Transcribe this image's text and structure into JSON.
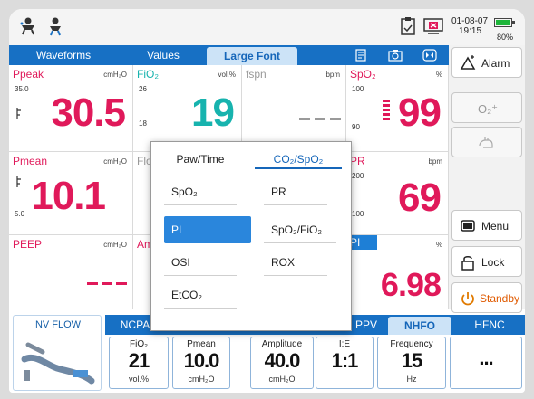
{
  "status": {
    "date": "01-08-07",
    "time": "19:15",
    "battery": "80%"
  },
  "tabs": [
    {
      "label": "Waveforms"
    },
    {
      "label": "Values"
    },
    {
      "label": "Large Font"
    }
  ],
  "params": {
    "ppeak": {
      "name": "Ppeak",
      "unit": "cmH₂O",
      "hi": "35.0",
      "value": "30.5"
    },
    "fio2": {
      "name": "FiO₂",
      "unit": "vol.%",
      "hi": "26",
      "lo": "18",
      "value": "19"
    },
    "fspn": {
      "name": "fspn",
      "unit": "bpm"
    },
    "spo2": {
      "name": "SpO₂",
      "unit": "%",
      "hi": "100",
      "lo": "90",
      "value": "99"
    },
    "pmean": {
      "name": "Pmean",
      "unit": "cmH₂O",
      "lo": "5.0",
      "value": "10.1"
    },
    "flow": {
      "name": "Flov"
    },
    "pr": {
      "name": "PR",
      "unit": "bpm",
      "hi": "200",
      "lo": "100",
      "value": "69"
    },
    "peep": {
      "name": "PEEP",
      "unit": "cmH₂O"
    },
    "amp": {
      "name": "Amp"
    },
    "pi": {
      "name": "PI",
      "unit": "%",
      "value": "6.98"
    }
  },
  "right_buttons": {
    "alarm": "Alarm",
    "o2": "O₂⁺",
    "menu": "Menu",
    "lock": "Lock",
    "standby": "Standby"
  },
  "popup": {
    "tabs": [
      "Paw/Time",
      "CO₂/SpO₂"
    ],
    "items": [
      "SpO₂",
      "PR",
      "PI",
      "SpO₂/FiO₂",
      "OSI",
      "ROX",
      "EtCO₂"
    ]
  },
  "bottom": {
    "nvflow": "NV FLOW",
    "modes": [
      "NCPA",
      "PPV",
      "NHFO",
      "HFNC"
    ],
    "settings": [
      {
        "name": "FiO₂",
        "value": "21",
        "unit": "vol.%"
      },
      {
        "name": "Pmean",
        "value": "10.0",
        "unit": "cmH₂O"
      },
      {
        "name": "Amplitude",
        "value": "40.0",
        "unit": "cmH₂O"
      },
      {
        "name": "I:E",
        "value": "1:1",
        "unit": ""
      },
      {
        "name": "Frequency",
        "value": "15",
        "unit": "Hz"
      },
      {
        "name": "",
        "value": "...",
        "unit": ""
      }
    ]
  },
  "colors": {
    "accent": "#1770c4",
    "alarm_red": "#e0195a",
    "teal": "#17b3ae"
  }
}
